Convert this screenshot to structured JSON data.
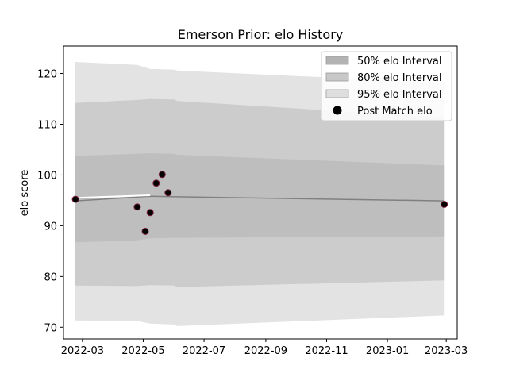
{
  "chart_data": {
    "type": "area",
    "title": "Emerson Prior: elo History",
    "xlabel": "",
    "ylabel": "elo score",
    "xlim": [
      "2022-02-10",
      "2023-03-12"
    ],
    "ylim": [
      67.7,
      125.4
    ],
    "x_ticks": [
      "2022-03",
      "2022-05",
      "2022-07",
      "2022-09",
      "2022-11",
      "2023-01",
      "2023-03"
    ],
    "y_ticks": [
      70,
      80,
      90,
      100,
      110,
      120
    ],
    "legend_position": "top-right",
    "grid": false,
    "bands": [
      {
        "name": "95% elo Interval",
        "color": "#e3e3e3",
        "x": [
          "2022-02-22",
          "2022-04-25",
          "2022-05-08",
          "2022-06-01",
          "2022-06-04",
          "2023-02-27"
        ],
        "lower": [
          71.4,
          71.3,
          70.8,
          70.6,
          70.3,
          72.4
        ],
        "upper": [
          122.2,
          121.6,
          120.8,
          120.7,
          120.5,
          118.1
        ]
      },
      {
        "name": "80% elo Interval",
        "color": "#cccccc",
        "x": [
          "2022-02-22",
          "2022-04-25",
          "2022-05-08",
          "2022-06-01",
          "2022-06-04",
          "2023-02-27"
        ],
        "lower": [
          78.3,
          78.2,
          78.4,
          78.3,
          78.0,
          79.3
        ],
        "upper": [
          114.1,
          114.7,
          114.9,
          114.8,
          114.5,
          111.2
        ]
      },
      {
        "name": "50% elo Interval",
        "color": "#bebebe",
        "x": [
          "2022-02-22",
          "2022-04-25",
          "2022-05-08",
          "2022-06-01",
          "2022-06-04",
          "2023-02-27"
        ],
        "lower": [
          86.8,
          87.2,
          87.6,
          87.7,
          87.7,
          88.0
        ],
        "upper": [
          103.7,
          104.1,
          104.2,
          104.1,
          103.9,
          101.8
        ]
      }
    ],
    "mean_line": {
      "color": "#808080",
      "x": [
        "2022-02-22",
        "2022-05-08",
        "2022-06-04",
        "2023-02-27"
      ],
      "y": [
        94.9,
        95.8,
        95.7,
        94.9
      ]
    },
    "highlight_line": {
      "color": "#ffffff",
      "x": [
        "2022-02-22",
        "2022-05-08"
      ],
      "y": [
        95.5,
        96.0
      ]
    },
    "points": {
      "name": "Post Match elo",
      "color": "#000000",
      "edge_color": "#7a1f3d",
      "x": [
        "2022-02-22",
        "2022-04-25",
        "2022-05-03",
        "2022-05-08",
        "2022-05-14",
        "2022-05-20",
        "2022-05-26",
        "2023-02-27"
      ],
      "y": [
        95.2,
        93.7,
        88.9,
        92.6,
        98.4,
        100.1,
        96.5,
        94.2
      ]
    },
    "legend": [
      {
        "label": "50% elo Interval",
        "marker": "patch",
        "color": "#b3b3b3"
      },
      {
        "label": "80% elo Interval",
        "marker": "patch",
        "color": "#c8c8c8"
      },
      {
        "label": "95% elo Interval",
        "marker": "patch",
        "color": "#dedede"
      },
      {
        "label": "Post Match elo",
        "marker": "circle",
        "color": "#000000"
      }
    ]
  }
}
